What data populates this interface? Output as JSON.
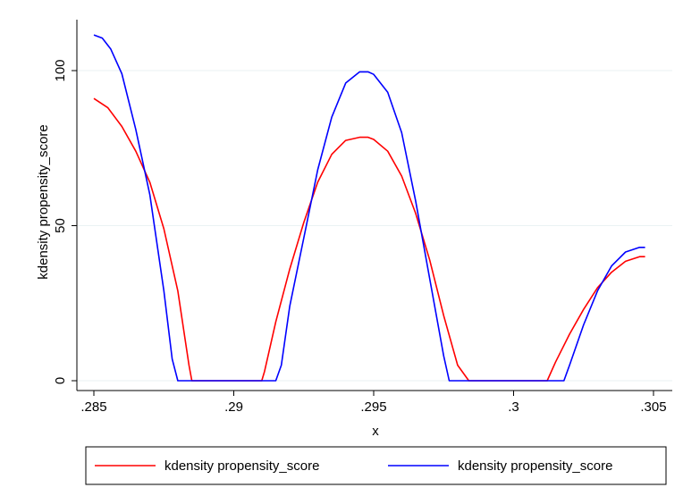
{
  "chart_data": {
    "type": "line",
    "title": "",
    "xlabel": "x",
    "ylabel": "kdensity propensity_score",
    "xlim": [
      0.285,
      0.305
    ],
    "ylim": [
      0,
      110
    ],
    "x_ticks": [
      0.285,
      0.29,
      0.295,
      0.3,
      0.305
    ],
    "x_tick_labels": [
      ".285",
      ".29",
      ".295",
      ".3",
      ".305"
    ],
    "y_ticks": [
      0,
      50,
      100
    ],
    "y_tick_labels": [
      "0",
      "50",
      "100"
    ],
    "grid": true,
    "legend_position": "bottom",
    "series": [
      {
        "name": "kdensity propensity_score",
        "color": "#ff0000",
        "x": [
          0.285,
          0.2855,
          0.286,
          0.2865,
          0.287,
          0.2875,
          0.288,
          0.2884,
          0.2885,
          0.289,
          0.29,
          0.291,
          0.2911,
          0.2915,
          0.292,
          0.2925,
          0.293,
          0.2935,
          0.294,
          0.2945,
          0.2948,
          0.295,
          0.2955,
          0.296,
          0.2965,
          0.297,
          0.2975,
          0.298,
          0.2984,
          0.2985,
          0.299,
          0.3,
          0.3012,
          0.3015,
          0.302,
          0.3025,
          0.303,
          0.3035,
          0.304,
          0.3045,
          0.3047
        ],
        "y": [
          91,
          88,
          82,
          74,
          64,
          49,
          29,
          5,
          0,
          0,
          0,
          0,
          3,
          19,
          36,
          51,
          64,
          73,
          77.5,
          78.5,
          78.5,
          77.8,
          74,
          66,
          54,
          39,
          21,
          5,
          0,
          0,
          0,
          0,
          0,
          6,
          15,
          23,
          30,
          35,
          38.5,
          40,
          40
        ]
      },
      {
        "name": "kdensity propensity_score",
        "color": "#0000ff",
        "x": [
          0.285,
          0.2853,
          0.2856,
          0.286,
          0.2865,
          0.287,
          0.2875,
          0.2878,
          0.288,
          0.289,
          0.29,
          0.291,
          0.2915,
          0.2917,
          0.292,
          0.2925,
          0.293,
          0.2935,
          0.294,
          0.2945,
          0.2948,
          0.295,
          0.2955,
          0.296,
          0.2965,
          0.297,
          0.2975,
          0.2977,
          0.298,
          0.299,
          0.3,
          0.301,
          0.3018,
          0.302,
          0.3025,
          0.303,
          0.3035,
          0.304,
          0.3045,
          0.3047
        ],
        "y": [
          111.5,
          110.5,
          107,
          99,
          81,
          60,
          29,
          7,
          0,
          0,
          0,
          0,
          0,
          5,
          24,
          46,
          68,
          85,
          96,
          99.6,
          99.6,
          98.8,
          93,
          80,
          58,
          33,
          8,
          0,
          0,
          0,
          0,
          0,
          0,
          5,
          18,
          29,
          37,
          41.5,
          43,
          43
        ]
      }
    ]
  }
}
